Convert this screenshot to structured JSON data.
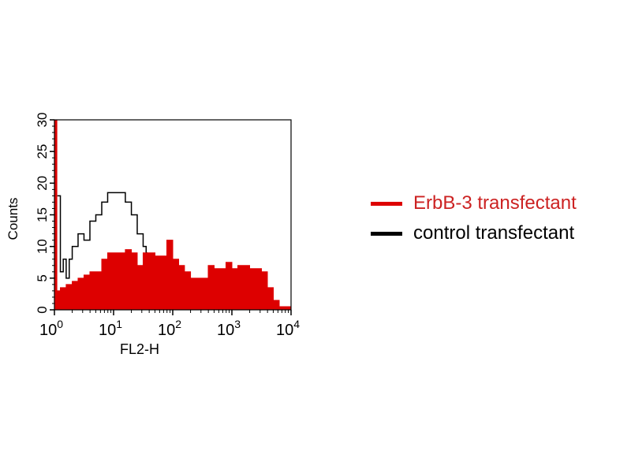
{
  "chart_data": {
    "type": "area",
    "title": "",
    "xlabel": "FL2-H",
    "ylabel": "Counts",
    "xscale": "log",
    "xlim": [
      1,
      10000
    ],
    "ylim": [
      0,
      30
    ],
    "xticks": [
      {
        "base": "10",
        "exp": "0"
      },
      {
        "base": "10",
        "exp": "1"
      },
      {
        "base": "10",
        "exp": "2"
      },
      {
        "base": "10",
        "exp": "3"
      },
      {
        "base": "10",
        "exp": "4"
      }
    ],
    "yticks": [
      "0",
      "5",
      "10",
      "15",
      "20",
      "25",
      "30"
    ],
    "grid": false,
    "legend_position": "right",
    "series": [
      {
        "name": "ErbB-3 transfectant",
        "color": "#dd0000",
        "style": "filled",
        "x": [
          1,
          1.1,
          1.26,
          1.58,
          2,
          2.51,
          3.16,
          3.98,
          5.01,
          6.31,
          7.94,
          10,
          12.6,
          15.8,
          20,
          25.1,
          31.6,
          39.8,
          50.1,
          63.1,
          79.4,
          100,
          126,
          158,
          200,
          251,
          316,
          398,
          501,
          631,
          794,
          1000,
          1259,
          1585,
          1995,
          2512,
          3162,
          3981,
          5012,
          6310,
          7943
        ],
        "values": [
          31,
          3,
          3.5,
          4,
          4.5,
          5,
          5.5,
          6,
          6,
          8,
          9,
          9,
          9,
          9.5,
          9,
          7,
          9,
          9,
          8.5,
          8.5,
          11,
          8,
          7,
          6,
          5,
          5,
          5,
          7,
          6.5,
          6.5,
          7.5,
          6.5,
          7,
          7,
          6.5,
          6.5,
          6,
          3.5,
          1.5,
          0.5,
          0.5
        ]
      },
      {
        "name": "control transfectant",
        "color": "#000000",
        "style": "outline",
        "x": [
          1.12,
          1.26,
          1.41,
          1.58,
          1.78,
          2,
          2.51,
          3.16,
          3.98,
          5.01,
          6.31,
          7.94,
          10,
          12.6,
          15.8,
          20,
          25.1,
          31.6,
          35.5
        ],
        "values": [
          18,
          6,
          8,
          5,
          8,
          10,
          12,
          11,
          14,
          15,
          17,
          18.5,
          18.5,
          18.5,
          17,
          15,
          12,
          10,
          9
        ]
      }
    ]
  }
}
